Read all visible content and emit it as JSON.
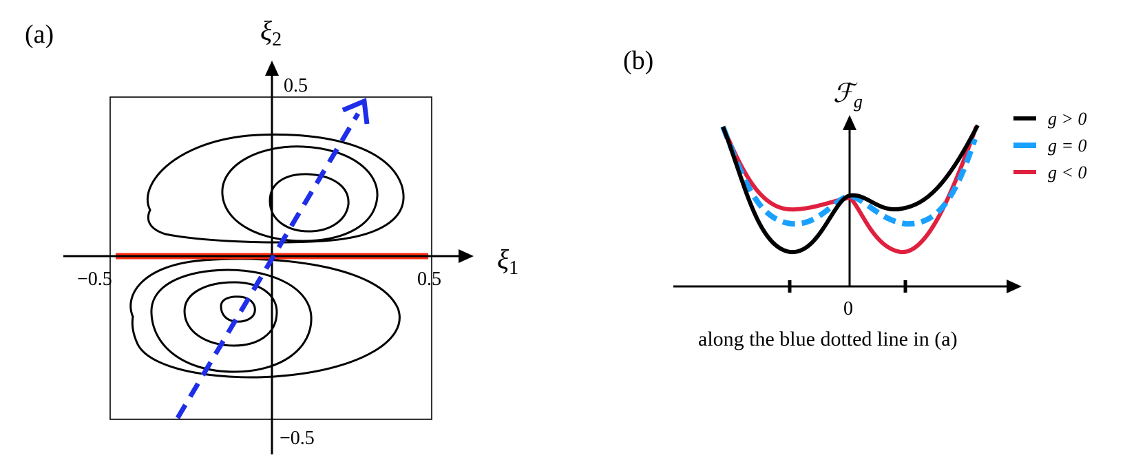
{
  "panel_a": {
    "label": "(a)",
    "x_axis_label": "ξ",
    "x_axis_sub": "1",
    "y_axis_label": "ξ",
    "y_axis_sub": "2",
    "tick_x_neg": "−0.5",
    "tick_x_pos": "0.5",
    "tick_y_pos": "0.5",
    "tick_y_neg": "−0.5",
    "colors": {
      "contour": "#000000",
      "red_line": "#ff2d10",
      "blue_arrow": "#1f2ee8"
    }
  },
  "panel_b": {
    "label": "(b)",
    "y_axis_label": "ℱ",
    "y_axis_sub": "g",
    "x_origin": "0",
    "x_caption": "along the blue dotted line in (a)",
    "legend": [
      {
        "label": "g > 0",
        "color": "#000000",
        "style": "solid"
      },
      {
        "label": "g = 0",
        "color": "#1aa0ff",
        "style": "dashed"
      },
      {
        "label": "g < 0",
        "color": "#e0203f",
        "style": "solid"
      }
    ]
  }
}
